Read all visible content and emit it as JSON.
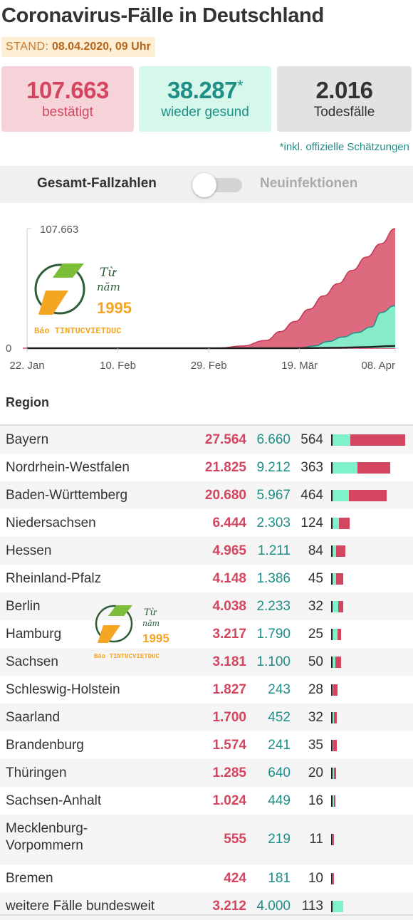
{
  "title": "Coronavirus-Fälle in Deutschland",
  "stand": {
    "label": "STAND:",
    "value": "08.04.2020, 09 Uhr"
  },
  "stats": {
    "confirmed": {
      "value": "107.663",
      "label": "bestätigt"
    },
    "recovered": {
      "value": "38.287",
      "asterisk": "*",
      "label": "wieder gesund"
    },
    "deaths": {
      "value": "2.016",
      "label": "Todesfälle"
    }
  },
  "note": "*inkl. offizielle Schätzungen",
  "toggle": {
    "left_label": "Gesamt-Fallzahlen",
    "right_label": "Neuinfektionen",
    "state": "off"
  },
  "watermark": {
    "line1": "Từ",
    "line2": "năm",
    "year": "1995",
    "brand": "Báo TINTUCVIETDUC"
  },
  "colors": {
    "confirmed": "#d4455f",
    "recovered": "#7ff2cc",
    "deaths": "#222222",
    "accent_teal": "#1e8e87"
  },
  "chart_data": {
    "type": "area",
    "x_tick_labels": [
      "22. Jan",
      "10. Feb",
      "29. Feb",
      "19. Mär",
      "08. Apr"
    ],
    "y_tick_labels": [
      "107.663",
      "0"
    ],
    "ylim": [
      0,
      107663
    ],
    "days_total": 77,
    "series": [
      {
        "name": "bestätigt",
        "color": "#d4455f",
        "points": [
          [
            0,
            0
          ],
          [
            40,
            100
          ],
          [
            45,
            2000
          ],
          [
            50,
            7000
          ],
          [
            53,
            15000
          ],
          [
            56,
            24000
          ],
          [
            59,
            35000
          ],
          [
            62,
            47000
          ],
          [
            65,
            58000
          ],
          [
            68,
            70000
          ],
          [
            71,
            82000
          ],
          [
            74,
            94000
          ],
          [
            77,
            107663
          ]
        ]
      },
      {
        "name": "wieder gesund",
        "color": "#7ff2cc",
        "points": [
          [
            0,
            0
          ],
          [
            57,
            0
          ],
          [
            60,
            2000
          ],
          [
            63,
            6000
          ],
          [
            66,
            10000
          ],
          [
            69,
            14000
          ],
          [
            72,
            19000
          ],
          [
            74,
            32000
          ],
          [
            77,
            38287
          ]
        ]
      },
      {
        "name": "Todesfälle",
        "color": "#222222",
        "points": [
          [
            0,
            0
          ],
          [
            55,
            0
          ],
          [
            60,
            200
          ],
          [
            65,
            400
          ],
          [
            70,
            900
          ],
          [
            77,
            2016
          ]
        ]
      }
    ]
  },
  "table": {
    "header": "Region",
    "rows": [
      {
        "name": "Bayern",
        "confirmed": "27.564",
        "recovered": "6.660",
        "deaths": "564",
        "c": 27564,
        "r": 6660,
        "d": 564
      },
      {
        "name": "Nordrhein-Westfalen",
        "confirmed": "21.825",
        "recovered": "9.212",
        "deaths": "363",
        "c": 21825,
        "r": 9212,
        "d": 363
      },
      {
        "name": "Baden-Württemberg",
        "confirmed": "20.680",
        "recovered": "5.967",
        "deaths": "464",
        "c": 20680,
        "r": 5967,
        "d": 464
      },
      {
        "name": "Niedersachsen",
        "confirmed": "6.444",
        "recovered": "2.303",
        "deaths": "124",
        "c": 6444,
        "r": 2303,
        "d": 124
      },
      {
        "name": "Hessen",
        "confirmed": "4.965",
        "recovered": "1.211",
        "deaths": "84",
        "c": 4965,
        "r": 1211,
        "d": 84
      },
      {
        "name": "Rheinland-Pfalz",
        "confirmed": "4.148",
        "recovered": "1.386",
        "deaths": "45",
        "c": 4148,
        "r": 1386,
        "d": 45
      },
      {
        "name": "Berlin",
        "confirmed": "4.038",
        "recovered": "2.233",
        "deaths": "32",
        "c": 4038,
        "r": 2233,
        "d": 32
      },
      {
        "name": "Hamburg",
        "confirmed": "3.217",
        "recovered": "1.790",
        "deaths": "25",
        "c": 3217,
        "r": 1790,
        "d": 25
      },
      {
        "name": "Sachsen",
        "confirmed": "3.181",
        "recovered": "1.100",
        "deaths": "50",
        "c": 3181,
        "r": 1100,
        "d": 50
      },
      {
        "name": "Schleswig-Holstein",
        "confirmed": "1.827",
        "recovered": "243",
        "deaths": "28",
        "c": 1827,
        "r": 243,
        "d": 28
      },
      {
        "name": "Saarland",
        "confirmed": "1.700",
        "recovered": "452",
        "deaths": "32",
        "c": 1700,
        "r": 452,
        "d": 32
      },
      {
        "name": "Brandenburg",
        "confirmed": "1.574",
        "recovered": "241",
        "deaths": "35",
        "c": 1574,
        "r": 241,
        "d": 35
      },
      {
        "name": "Thüringen",
        "confirmed": "1.285",
        "recovered": "640",
        "deaths": "20",
        "c": 1285,
        "r": 640,
        "d": 20
      },
      {
        "name": "Sachsen-Anhalt",
        "confirmed": "1.024",
        "recovered": "449",
        "deaths": "16",
        "c": 1024,
        "r": 449,
        "d": 16
      },
      {
        "name": "Mecklenburg-Vorpommern",
        "confirmed": "555",
        "recovered": "219",
        "deaths": "11",
        "c": 555,
        "r": 219,
        "d": 11
      },
      {
        "name": "Bremen",
        "confirmed": "424",
        "recovered": "181",
        "deaths": "10",
        "c": 424,
        "r": 181,
        "d": 10
      },
      {
        "name": "weitere Fälle bundesweit",
        "confirmed": "3.212",
        "recovered": "4.000",
        "deaths": "113",
        "c": 3212,
        "r": 4000,
        "d": 113
      }
    ]
  }
}
